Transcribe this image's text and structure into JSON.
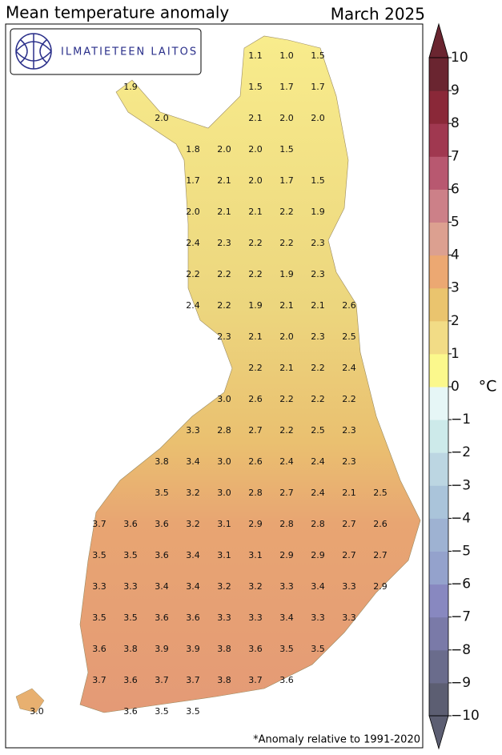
{
  "title": "Mean temperature anomaly",
  "period": "March 2025",
  "logo_text": "ILMATIETEEN LAITOS",
  "footnote": "*Anomaly relative to 1991-2020",
  "grid": [
    [
      null,
      null,
      null,
      null,
      null,
      null,
      null,
      "1.1",
      "1.0",
      "1.5",
      null,
      null
    ],
    [
      null,
      null,
      null,
      "1.9",
      null,
      null,
      null,
      "1.5",
      "1.7",
      "1.7",
      null,
      null
    ],
    [
      null,
      null,
      null,
      null,
      "2.0",
      null,
      null,
      "2.1",
      "2.0",
      "2.0",
      null,
      null
    ],
    [
      null,
      null,
      null,
      null,
      null,
      "1.8",
      "2.0",
      "2.0",
      "1.5",
      null,
      null,
      null
    ],
    [
      null,
      null,
      null,
      null,
      null,
      "1.7",
      "2.1",
      "2.0",
      "1.7",
      "1.5",
      null,
      null
    ],
    [
      null,
      null,
      null,
      null,
      null,
      "2.0",
      "2.1",
      "2.1",
      "2.2",
      "1.9",
      null,
      null
    ],
    [
      null,
      null,
      null,
      null,
      null,
      "2.4",
      "2.3",
      "2.2",
      "2.2",
      "2.3",
      null,
      null
    ],
    [
      null,
      null,
      null,
      null,
      null,
      "2.2",
      "2.2",
      "2.2",
      "1.9",
      "2.3",
      null,
      null
    ],
    [
      null,
      null,
      null,
      null,
      null,
      "2.4",
      "2.2",
      "1.9",
      "2.1",
      "2.1",
      "2.6",
      null
    ],
    [
      null,
      null,
      null,
      null,
      null,
      null,
      "2.3",
      "2.1",
      "2.0",
      "2.3",
      "2.5",
      null
    ],
    [
      null,
      null,
      null,
      null,
      null,
      null,
      null,
      "2.2",
      "2.1",
      "2.2",
      "2.4",
      null
    ],
    [
      null,
      null,
      null,
      null,
      null,
      null,
      "3.0",
      "2.6",
      "2.2",
      "2.2",
      "2.2",
      null
    ],
    [
      null,
      null,
      null,
      null,
      null,
      "3.3",
      "2.8",
      "2.7",
      "2.2",
      "2.5",
      "2.3",
      null
    ],
    [
      null,
      null,
      null,
      null,
      "3.8",
      "3.4",
      "3.0",
      "2.6",
      "2.4",
      "2.4",
      "2.3",
      null
    ],
    [
      null,
      null,
      null,
      null,
      "3.5",
      "3.2",
      "3.0",
      "2.8",
      "2.7",
      "2.4",
      "2.1",
      "2.5"
    ],
    [
      null,
      null,
      "3.7",
      "3.6",
      "3.6",
      "3.2",
      "3.1",
      "2.9",
      "2.8",
      "2.8",
      "2.7",
      "2.6"
    ],
    [
      null,
      null,
      "3.5",
      "3.5",
      "3.6",
      "3.4",
      "3.1",
      "3.1",
      "2.9",
      "2.9",
      "2.7",
      "2.7"
    ],
    [
      null,
      null,
      "3.3",
      "3.3",
      "3.4",
      "3.4",
      "3.2",
      "3.2",
      "3.3",
      "3.4",
      "3.3",
      "2.9"
    ],
    [
      null,
      null,
      "3.5",
      "3.5",
      "3.6",
      "3.6",
      "3.3",
      "3.3",
      "3.4",
      "3.3",
      "3.3",
      null
    ],
    [
      null,
      null,
      "3.6",
      "3.8",
      "3.9",
      "3.9",
      "3.8",
      "3.6",
      "3.5",
      "3.5",
      null,
      null
    ],
    [
      null,
      null,
      "3.7",
      "3.6",
      "3.7",
      "3.7",
      "3.8",
      "3.7",
      "3.6",
      null,
      null,
      null
    ],
    [
      "3.0",
      null,
      null,
      "3.6",
      "3.5",
      "3.5",
      null,
      null,
      null,
      null,
      null,
      null
    ]
  ],
  "colorbar": {
    "unit": "°C",
    "lim": [
      -10,
      10
    ],
    "ticks": [
      {
        "value": -10,
        "label": "−10"
      },
      {
        "value": -9,
        "label": "−9"
      },
      {
        "value": -8,
        "label": "−8"
      },
      {
        "value": -7,
        "label": "−7"
      },
      {
        "value": -6,
        "label": "−6"
      },
      {
        "value": -5,
        "label": "−5"
      },
      {
        "value": -4,
        "label": "−4"
      },
      {
        "value": -3,
        "label": "−3"
      },
      {
        "value": -2,
        "label": "−2"
      },
      {
        "value": -1,
        "label": "−1"
      },
      0,
      1,
      2,
      3,
      4,
      5,
      6,
      7,
      8,
      9,
      10
    ],
    "colors": [
      "#5c5e72",
      "#6a6c8c",
      "#7a7aa8",
      "#8888c0",
      "#94a2cc",
      "#9eb2d2",
      "#aac4da",
      "#bcd6e2",
      "#cdeaea",
      "#e6f6f6",
      "#fbf88c",
      "#f2dc86",
      "#eac46e",
      "#eca872",
      "#dca090",
      "#cc8088",
      "#b85870",
      "#a03850",
      "#8a2838",
      "#6a2530"
    ]
  }
}
